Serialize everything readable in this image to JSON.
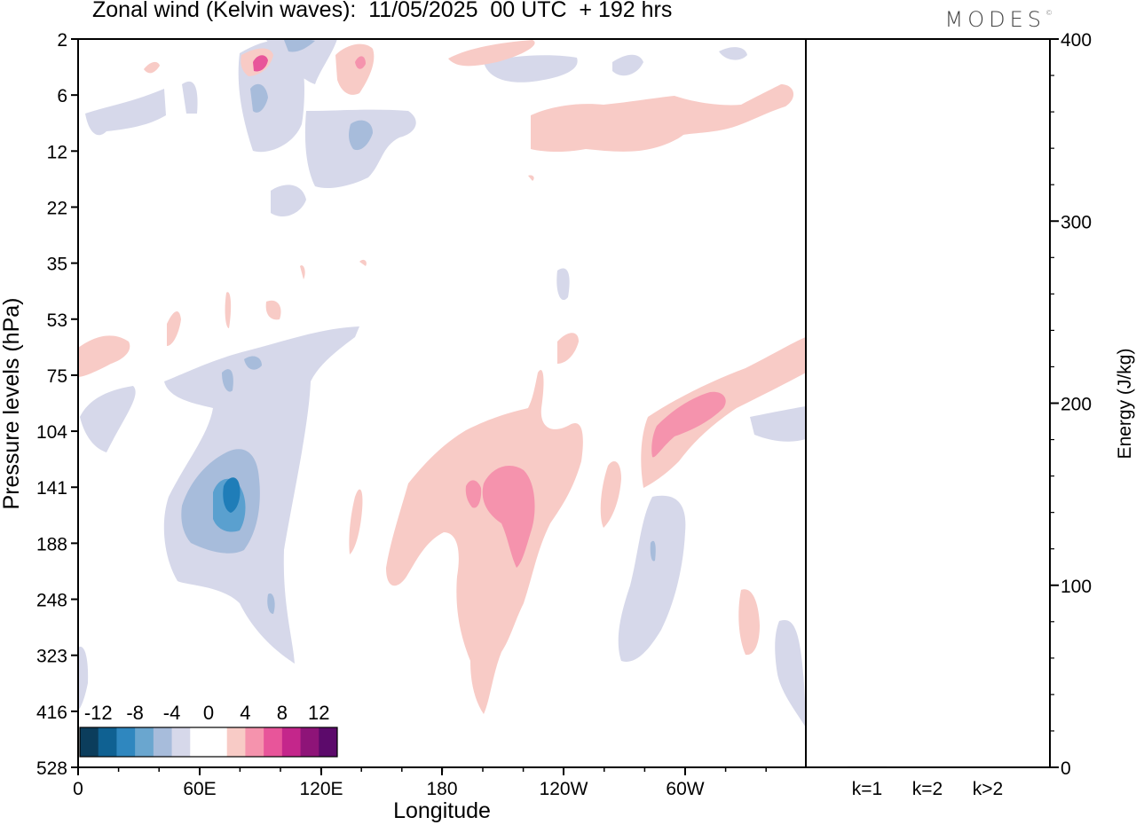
{
  "chart_data": [
    {
      "type": "heatmap",
      "title": "Zonal wind (Kelvin waves):  11/05/2025  00 UTC  + 192 hrs",
      "xlabel": "Longitude",
      "ylabel": "Pressure levels (hPa)",
      "x_ticks": [
        "0",
        "60E",
        "120E",
        "180",
        "120W",
        "60W"
      ],
      "y_ticks": [
        "2",
        "6",
        "12",
        "22",
        "35",
        "53",
        "75",
        "104",
        "141",
        "188",
        "248",
        "323",
        "416",
        "528"
      ],
      "colorbar": {
        "labels": [
          "-12",
          "-8",
          "-4",
          "0",
          "4",
          "8",
          "12"
        ],
        "colors": [
          "#0b3d5c",
          "#0f6192",
          "#2f87bf",
          "#6aa6cf",
          "#a7bcdb",
          "#d6d8ea",
          "#ffffff",
          "#ffffff",
          "#f8cbc6",
          "#f593ad",
          "#e8559a",
          "#c4268b",
          "#8e1478",
          "#5c0a6b"
        ]
      },
      "shading": [
        {
          "level": "-4",
          "color": "#d6d8ea",
          "regions": [
            {
              "center": [
                75,
                150
              ],
              "radii": [
                30,
                70
              ]
            },
            {
              "center": [
                68,
                100
              ],
              "radii": [
                60,
                12
              ]
            },
            {
              "center": [
                12,
                104
              ],
              "radii": [
                12,
                12
              ]
            },
            {
              "center": [
                105,
                12
              ],
              "radii": [
                25,
                8
              ]
            },
            {
              "center": [
                65,
                8
              ],
              "radii": [
                30,
                4
              ]
            },
            {
              "center": [
                215,
                30
              ],
              "radii": [
                8,
                3
              ]
            },
            {
              "center": [
                235,
                150
              ],
              "radii": [
                15,
                60
              ]
            },
            {
              "center": [
                350,
                320
              ],
              "radii": [
                10,
                80
              ]
            }
          ]
        },
        {
          "level": "-8",
          "color": "#a7bcdb",
          "regions": [
            {
              "center": [
                70,
                160
              ],
              "radii": [
                18,
                30
              ]
            },
            {
              "center": [
                110,
                14
              ],
              "radii": [
                10,
                4
              ]
            }
          ]
        },
        {
          "level": "-12",
          "color": "#6aa6cf",
          "regions": [
            {
              "center": [
                75,
                155
              ],
              "radii": [
                8,
                16
              ]
            }
          ]
        },
        {
          "level": "4",
          "color": "#f8cbc6",
          "regions": [
            {
              "center": [
                5,
                70
              ],
              "radii": [
                6,
                6
              ]
            },
            {
              "center": [
                195,
                200
              ],
              "radii": [
                40,
                160
              ]
            },
            {
              "center": [
                265,
                12
              ],
              "radii": [
                35,
                4
              ]
            },
            {
              "center": [
                290,
                110
              ],
              "radii": [
                35,
                30
              ]
            },
            {
              "center": [
                337,
                220
              ],
              "radii": [
                10,
                30
              ]
            }
          ]
        },
        {
          "level": "8",
          "color": "#f593ad",
          "regions": [
            {
              "center": [
                208,
                150
              ],
              "radii": [
                15,
                35
              ]
            },
            {
              "center": [
                290,
                105
              ],
              "radii": [
                12,
                10
              ]
            }
          ]
        }
      ]
    },
    {
      "type": "bar",
      "categories": [
        "k=1",
        "k=2",
        "k>2"
      ],
      "values": [
        0.5,
        0.3,
        0.3
      ],
      "ylabel": "Energy (J/kg)",
      "ylim": [
        0,
        400
      ],
      "y_ticks": [
        "0",
        "100",
        "200",
        "300",
        "400"
      ]
    }
  ],
  "brand": {
    "name": "MODES",
    "mark": "©"
  }
}
